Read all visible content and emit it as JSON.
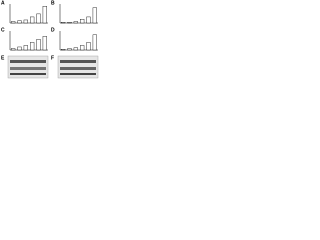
{
  "chart_data": [
    {
      "type": "bar",
      "label": "A",
      "categories": [
        null,
        null,
        null,
        null,
        null,
        null
      ],
      "values": [
        2,
        3,
        4,
        8,
        12,
        22
      ],
      "ylim": [
        0,
        25
      ],
      "color": "#ffffff"
    },
    {
      "type": "bar",
      "label": "B",
      "categories": [
        null,
        null,
        null,
        null,
        null,
        null
      ],
      "values": [
        1,
        1,
        2,
        5,
        8,
        20
      ],
      "ylim": [
        0,
        25
      ],
      "color": "#ffffff"
    },
    {
      "type": "bar",
      "label": "C",
      "categories": [
        null,
        null,
        null,
        null,
        null,
        null
      ],
      "values": [
        2,
        4,
        6,
        10,
        14,
        18
      ],
      "ylim": [
        0,
        25
      ],
      "color": "#ffffff"
    },
    {
      "type": "bar",
      "label": "D",
      "categories": [
        null,
        null,
        null,
        null,
        null,
        null
      ],
      "values": [
        1,
        2,
        3,
        6,
        10,
        20
      ],
      "ylim": [
        0,
        25
      ],
      "color": "#ffffff"
    }
  ],
  "blots": [
    {
      "label": "E"
    },
    {
      "label": "F"
    }
  ]
}
